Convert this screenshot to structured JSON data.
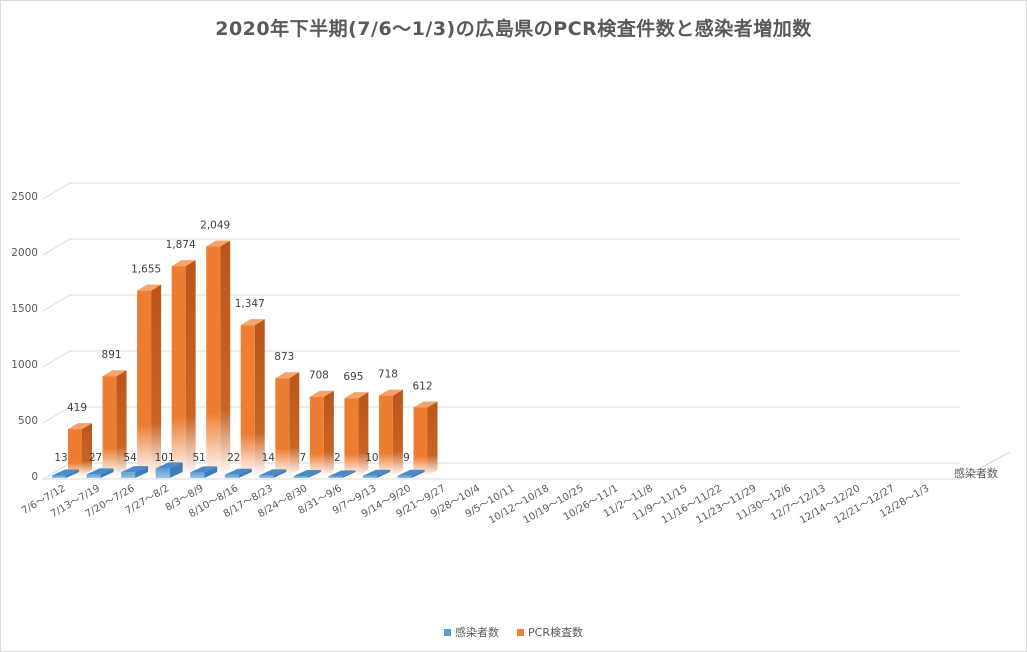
{
  "chart_data": {
    "type": "bar",
    "title": "2020年下半期(7/6〜1/3)の広島県のPCR検査件数と感染者増加数",
    "categories": [
      "7/6〜7/12",
      "7/13〜7/19",
      "7/20〜7/26",
      "7/27〜8/2",
      "8/3〜8/9",
      "8/10〜8/16",
      "8/17〜8/23",
      "8/24〜8/30",
      "8/31〜9/6",
      "9/7〜9/13",
      "9/14〜9/20",
      "9/21〜9/27",
      "9/28〜10/4",
      "9/5〜10/11",
      "10/12〜10/18",
      "10/19〜10/25",
      "10/26〜11/1",
      "11/2〜11/8",
      "11/9〜11/15",
      "11/16〜11/22",
      "11/23〜11/29",
      "11/30〜12/6",
      "12/7〜12/13",
      "12/14〜12/20",
      "12/21〜12/27",
      "12/28〜1/3"
    ],
    "series": [
      {
        "name": "感染者数",
        "color": "#5b9bd5",
        "values": [
          13,
          27,
          54,
          101,
          51,
          22,
          14,
          7,
          2,
          10,
          9,
          null,
          null,
          null,
          null,
          null,
          null,
          null,
          null,
          null,
          null,
          null,
          null,
          null,
          null,
          null
        ],
        "labels": [
          "13",
          "27",
          "54",
          "101",
          "51",
          "22",
          "14",
          "7",
          "2",
          "10",
          "9"
        ]
      },
      {
        "name": "PCR検査数",
        "color": "#ed7d31",
        "values": [
          419,
          891,
          1655,
          1874,
          2049,
          1347,
          873,
          708,
          695,
          718,
          612,
          null,
          null,
          null,
          null,
          null,
          null,
          null,
          null,
          null,
          null,
          null,
          null,
          null,
          null,
          null
        ],
        "labels": [
          "419",
          "891",
          "1,655",
          "1,874",
          "2,049",
          "1,347",
          "873",
          "708",
          "695",
          "718",
          "612"
        ]
      }
    ],
    "yticks": [
      "0",
      "500",
      "1000",
      "1500",
      "2000",
      "2500"
    ],
    "ylim": [
      0,
      2500
    ],
    "depth_axis_label": "感染者数",
    "grid": true,
    "legend_position": "bottom",
    "style": "3d-column"
  }
}
